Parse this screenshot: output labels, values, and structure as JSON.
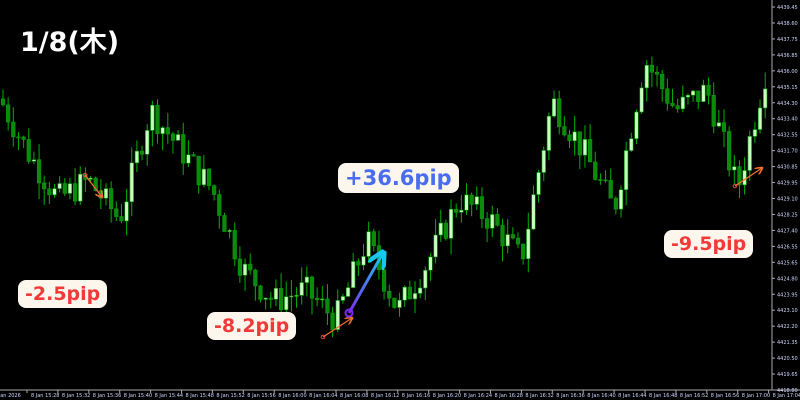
{
  "title": "1/8(木)",
  "annotations": [
    {
      "label": "+36.6pip",
      "color": "#4a6cf0"
    },
    {
      "label": "-2.5pip",
      "color": "#f03a3a"
    },
    {
      "label": "-8.2pip",
      "color": "#f03a3a"
    },
    {
      "label": "-9.5pip",
      "color": "#f03a3a"
    }
  ],
  "colors": {
    "background": "#000000",
    "up_candle": "#c8ffc0",
    "down_candle": "#0b8a0b",
    "wick": "#00b000",
    "axis_text": "#cfd6ff",
    "label_bg": "#fdf6ec"
  },
  "chart_data": {
    "type": "candlestick",
    "title": "",
    "x_tick_labels": [
      "8 Jan 2026",
      "8 Jan 15:28",
      "8 Jan 15:32",
      "8 Jan 15:36",
      "8 Jan 15:40",
      "8 Jan 15:44",
      "8 Jan 15:48",
      "8 Jan 15:52",
      "8 Jan 15:56",
      "8 Jan 16:00",
      "8 Jan 16:04",
      "8 Jan 16:08",
      "8 Jan 16:12",
      "8 Jan 16:16",
      "8 Jan 16:20",
      "8 Jan 16:24",
      "8 Jan 16:28",
      "8 Jan 16:32",
      "8 Jan 16:36",
      "8 Jan 16:40",
      "8 Jan 16:44",
      "8 Jan 16:48",
      "8 Jan 16:52",
      "8 Jan 16:56",
      "8 Jan 17:00",
      "8 Jan 17:04"
    ],
    "y_tick_labels": [
      "4439.45",
      "4438.60",
      "4437.75",
      "4436.85",
      "4436.00",
      "4435.15",
      "4434.30",
      "4433.40",
      "4432.55",
      "4431.70",
      "4430.85",
      "4429.95",
      "4429.10",
      "4428.25",
      "4427.40",
      "4426.55",
      "4425.65",
      "4424.80",
      "4423.95",
      "4423.10",
      "4422.20",
      "4421.35",
      "4420.50",
      "4419.65",
      "4418.80"
    ],
    "ylim": [
      4418.8,
      4439.45
    ],
    "approx_price_at_ticks": {
      "times": [
        "15:28",
        "15:32",
        "15:36",
        "15:40",
        "15:44",
        "15:48",
        "15:52",
        "15:56",
        "16:00",
        "16:04",
        "16:08",
        "16:12",
        "16:16",
        "16:20",
        "16:24",
        "16:28",
        "16:32",
        "16:36",
        "16:40",
        "16:44",
        "16:48",
        "16:52",
        "16:56",
        "17:00",
        "17:04"
      ],
      "values": [
        4431.7,
        4429.1,
        4430.1,
        4428.0,
        4433.9,
        4431.7,
        4429.6,
        4425.3,
        4423.6,
        4424.2,
        4422.6,
        4426.9,
        4423.1,
        4425.8,
        4429.1,
        4428.0,
        4425.8,
        4434.4,
        4431.7,
        4428.5,
        4436.6,
        4433.9,
        4435.0,
        4429.6,
        4436.6
      ]
    },
    "legend": "none",
    "grid": false
  }
}
